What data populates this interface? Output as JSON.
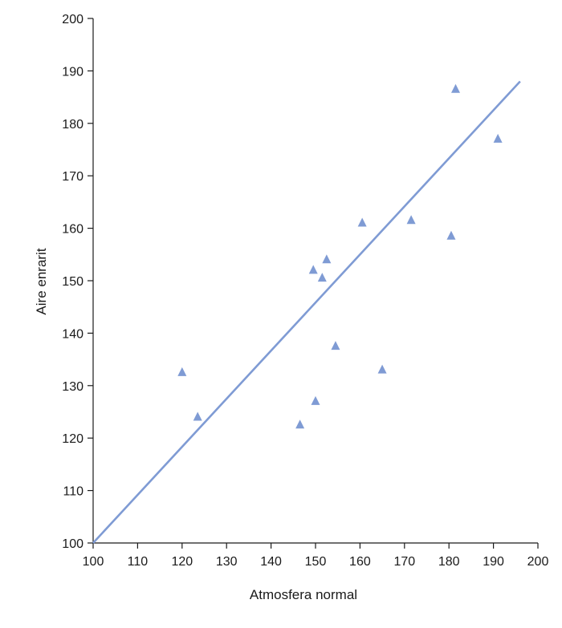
{
  "chart_data": {
    "type": "scatter",
    "title": "",
    "xlabel": "Atmosfera normal",
    "ylabel": "Aire enrarit",
    "xlim": [
      100,
      200
    ],
    "ylim": [
      100,
      200
    ],
    "x_ticks": [
      100,
      110,
      120,
      130,
      140,
      150,
      160,
      170,
      180,
      190,
      200
    ],
    "y_ticks": [
      100,
      110,
      120,
      130,
      140,
      150,
      160,
      170,
      180,
      190,
      200
    ],
    "grid": false,
    "marker": "triangle",
    "color": "#7f9bd4",
    "points": [
      {
        "x": 120,
        "y": 132.5
      },
      {
        "x": 123.5,
        "y": 124
      },
      {
        "x": 146.5,
        "y": 122.5
      },
      {
        "x": 149.5,
        "y": 152
      },
      {
        "x": 150,
        "y": 127
      },
      {
        "x": 151.5,
        "y": 150.5
      },
      {
        "x": 152.5,
        "y": 154
      },
      {
        "x": 154.5,
        "y": 137.5
      },
      {
        "x": 160.5,
        "y": 161
      },
      {
        "x": 165,
        "y": 133
      },
      {
        "x": 171.5,
        "y": 161.5
      },
      {
        "x": 180.5,
        "y": 158.5
      },
      {
        "x": 181.5,
        "y": 186.5
      },
      {
        "x": 191,
        "y": 177
      }
    ],
    "fit_line": {
      "x": [
        100,
        196
      ],
      "y": [
        100,
        188
      ]
    }
  }
}
